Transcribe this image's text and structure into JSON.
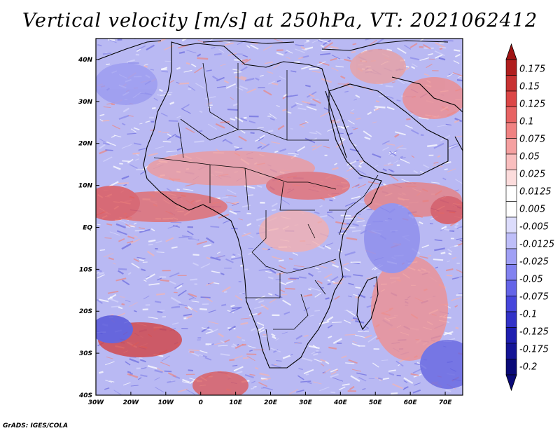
{
  "title": "Vertical velocity [m/s] at 250hPa, VT: 2021062412",
  "footer": "GrADS: IGES/COLA",
  "map": {
    "lon_range": [
      -30,
      75
    ],
    "lat_range": [
      -40,
      45
    ],
    "lon_ticks": [
      {
        "value": -30,
        "label": "30W"
      },
      {
        "value": -20,
        "label": "20W"
      },
      {
        "value": -10,
        "label": "10W"
      },
      {
        "value": 0,
        "label": "0"
      },
      {
        "value": 10,
        "label": "10E"
      },
      {
        "value": 20,
        "label": "20E"
      },
      {
        "value": 30,
        "label": "30E"
      },
      {
        "value": 40,
        "label": "40E"
      },
      {
        "value": 50,
        "label": "50E"
      },
      {
        "value": 60,
        "label": "60E"
      },
      {
        "value": 70,
        "label": "70E"
      }
    ],
    "lat_ticks": [
      {
        "value": 40,
        "label": "40N"
      },
      {
        "value": 30,
        "label": "30N"
      },
      {
        "value": 20,
        "label": "20N"
      },
      {
        "value": 10,
        "label": "10N"
      },
      {
        "value": 0,
        "label": "EQ"
      },
      {
        "value": -10,
        "label": "10S"
      },
      {
        "value": -20,
        "label": "20S"
      },
      {
        "value": -30,
        "label": "30S"
      },
      {
        "value": -40,
        "label": "40S"
      }
    ]
  },
  "colorbar": {
    "labels": [
      "0.175",
      "0.15",
      "0.125",
      "0.1",
      "0.075",
      "0.05",
      "0.025",
      "0.0125",
      "0.005",
      "-0.005",
      "-0.0125",
      "-0.025",
      "-0.05",
      "-0.075",
      "-0.1",
      "-0.125",
      "-0.175",
      "-0.2"
    ],
    "colors": [
      "#b01e1e",
      "#c83232",
      "#dc4646",
      "#e86464",
      "#f08282",
      "#f5a0a0",
      "#f9bebe",
      "#fcdcdc",
      "#ffffff",
      "#ffffff",
      "#dcdcfc",
      "#bebef9",
      "#a0a0f5",
      "#8282f0",
      "#6464e8",
      "#4646dc",
      "#3232c8",
      "#1e1eb0",
      "#141496",
      "#0a0a78"
    ],
    "arrow_top": "#a01414",
    "arrow_bottom": "#0a0a78"
  }
}
